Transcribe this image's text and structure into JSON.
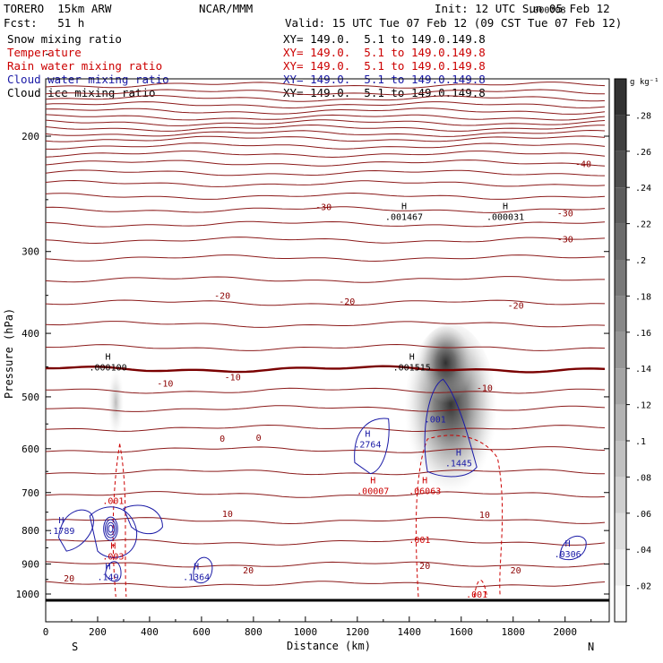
{
  "header": {
    "model": "TORERO  15km ARW",
    "org": "NCAR/MMM",
    "init": "Init: 12 UTC Sun 05 Feb 12",
    "fcst": "Fcst:   51 h",
    "valid": "Valid: 15 UTC Tue 07 Feb 12 (09 CST Tue 07 Feb 12)",
    "fields": [
      {
        "name": "Snow mixing ratio",
        "xy": "XY= 149.0.  5.1 to 149.0.149.8",
        "color": "#000000"
      },
      {
        "name": "Temperature",
        "xy": "XY= 149.0.  5.1 to 149.0.149.8",
        "color": "#cc0000"
      },
      {
        "name": "Rain water mixing ratio",
        "xy": "XY= 149.0.  5.1 to 149.0.149.8",
        "color": "#cc0000"
      },
      {
        "name": "Cloud water mixing ratio",
        "xy": "XY= 149.0.  5.1 to 149.0.149.8",
        "color": "#1a1aa6"
      },
      {
        "name": "Cloud ice mixing ratio",
        "xy": "XY= 149.0.  5.1 to 149.0.149.8",
        "color": "#000000"
      }
    ]
  },
  "chart_data": {
    "type": "cross-section",
    "xlabel": "Distance (km)",
    "ylabel": "Pressure (hPa)",
    "xlim": [
      0,
      2170
    ],
    "ylim": [
      1020,
      105
    ],
    "x_ticks": [
      0,
      200,
      400,
      600,
      800,
      1000,
      1200,
      1400,
      1600,
      1800,
      2000
    ],
    "y_ticks": [
      200,
      300,
      400,
      500,
      600,
      700,
      800,
      900,
      1000
    ],
    "y_scale": "log",
    "x_end_labels": {
      "left": "S",
      "right": "N"
    },
    "colorbar": {
      "unit": "g kg⁻¹",
      "ticks": [
        ".02",
        ".04",
        ".06",
        ".08",
        ".1",
        ".12",
        ".14",
        ".16",
        ".18",
        ".2",
        ".22",
        ".24",
        ".26",
        ".28"
      ]
    },
    "temperature_contours": [
      {
        "label": "-40",
        "x": 2070,
        "p": 220,
        "color": "#8b0000"
      },
      {
        "label": "-30",
        "x": 1070,
        "p": 256,
        "color": "#8b0000"
      },
      {
        "label": "-30",
        "x": 2000,
        "p": 262,
        "color": "#8b0000"
      },
      {
        "label": "-30",
        "x": 2000,
        "p": 287,
        "color": "#8b0000"
      },
      {
        "label": "-20",
        "x": 680,
        "p": 350,
        "color": "#8b0000"
      },
      {
        "label": "-20",
        "x": 1160,
        "p": 357,
        "color": "#8b0000"
      },
      {
        "label": "-20",
        "x": 1810,
        "p": 362,
        "color": "#8b0000"
      },
      {
        "label": "-10",
        "x": 460,
        "p": 476,
        "color": "#8b0000"
      },
      {
        "label": "-10",
        "x": 720,
        "p": 466,
        "color": "#8b0000"
      },
      {
        "label": "-10",
        "x": 1690,
        "p": 484,
        "color": "#8b0000"
      },
      {
        "label": "0",
        "x": 680,
        "p": 578,
        "color": "#8b0000"
      },
      {
        "label": "0",
        "x": 820,
        "p": 576,
        "color": "#8b0000"
      },
      {
        "label": "10",
        "x": 700,
        "p": 753,
        "color": "#8b0000"
      },
      {
        "label": "10",
        "x": 1690,
        "p": 755,
        "color": "#8b0000"
      },
      {
        "label": "20",
        "x": 780,
        "p": 918,
        "color": "#8b0000"
      },
      {
        "label": "20",
        "x": 1460,
        "p": 904,
        "color": "#8b0000"
      },
      {
        "label": "20",
        "x": 1810,
        "p": 918,
        "color": "#8b0000"
      },
      {
        "label": "20",
        "x": 90,
        "p": 945,
        "color": "#8b0000"
      }
    ],
    "maxima_labels": [
      {
        "marker": "H",
        "value": ".000100",
        "x": 240,
        "p": 450,
        "color": "#000000"
      },
      {
        "marker": "H",
        "value": ".001467",
        "x": 1380,
        "p": 265,
        "color": "#000000"
      },
      {
        "marker": "H",
        "value": ".000031",
        "x": 1770,
        "p": 265,
        "color": "#000000"
      },
      {
        "marker": "H",
        "value": ".001515",
        "x": 1410,
        "p": 450,
        "color": "#000000"
      },
      {
        "marker": "",
        "value": ".000008",
        "x": 1930,
        "p": 128,
        "color": "#000000"
      },
      {
        "marker": "",
        "value": ".001",
        "x": 1500,
        "p": 540,
        "color": "#1a1aa6"
      },
      {
        "marker": "H",
        "value": ".2764",
        "x": 1240,
        "p": 590,
        "color": "#1a1aa6"
      },
      {
        "marker": "H",
        "value": ".1445",
        "x": 1590,
        "p": 630,
        "color": "#1a1aa6"
      },
      {
        "marker": "H",
        "value": ".1789",
        "x": 60,
        "p": 800,
        "color": "#1a1aa6"
      },
      {
        "marker": "H",
        "value": ".149",
        "x": 240,
        "p": 940,
        "color": "#1a1aa6"
      },
      {
        "marker": "H",
        "value": ".1364",
        "x": 580,
        "p": 940,
        "color": "#1a1aa6"
      },
      {
        "marker": "H",
        "value": ".0306",
        "x": 2010,
        "p": 868,
        "color": "#1a1aa6"
      },
      {
        "marker": "H",
        "value": ".00007",
        "x": 1260,
        "p": 695,
        "color": "#cc0000"
      },
      {
        "marker": "H",
        "value": ".06063",
        "x": 1460,
        "p": 695,
        "color": "#cc0000"
      },
      {
        "marker": "",
        "value": ".001",
        "x": 260,
        "p": 720,
        "color": "#cc0000"
      },
      {
        "marker": "H",
        "value": ".003",
        "x": 260,
        "p": 875,
        "color": "#cc0000"
      },
      {
        "marker": "",
        "value": ".001",
        "x": 1440,
        "p": 825,
        "color": "#cc0000"
      },
      {
        "marker": "",
        "value": ".001",
        "x": 1660,
        "p": 1000,
        "color": "#cc0000"
      }
    ]
  }
}
